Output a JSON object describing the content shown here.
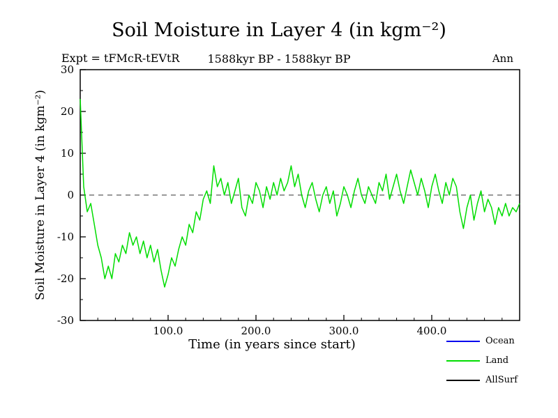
{
  "header": {
    "expt_label": "Expt = tFMcR-tEVtR",
    "period_label": "1588kyr BP - 1588kyr BP",
    "season_label": "Ann"
  },
  "chart_data": {
    "type": "line",
    "title": "Soil Moisture in Layer 4 (in kgm⁻²)",
    "xlabel": "Time (in years since start)",
    "ylabel": "Soil Moisture in Layer 4 (in kgm⁻²)",
    "xlim": [
      0,
      500
    ],
    "ylim": [
      -30,
      30
    ],
    "grid": false,
    "axis_color": "#000000",
    "x_minor_step": 20,
    "y_minor_step": 5,
    "xticks": [
      {
        "v": 100,
        "label": "100.0"
      },
      {
        "v": 200,
        "label": "200.0"
      },
      {
        "v": 300,
        "label": "300.0"
      },
      {
        "v": 400,
        "label": "400.0"
      }
    ],
    "yticks": [
      {
        "v": -30,
        "label": "-30"
      },
      {
        "v": -20,
        "label": "-20"
      },
      {
        "v": -10,
        "label": "-10"
      },
      {
        "v": 0,
        "label": "0"
      },
      {
        "v": 10,
        "label": "10"
      },
      {
        "v": 20,
        "label": "20"
      },
      {
        "v": 30,
        "label": "30"
      }
    ],
    "zero_line": {
      "y": 0,
      "style": "dashed",
      "color": "#333333"
    },
    "legend": {
      "position": "bottom-right",
      "entries": [
        {
          "name": "Ocean",
          "color": "#0000ee"
        },
        {
          "name": "Land",
          "color": "#00dd00"
        },
        {
          "name": "AllSurf",
          "color": "#000000"
        }
      ]
    },
    "series": [
      {
        "name": "Land",
        "color": "#00dd00",
        "x": [
          0,
          4,
          8,
          12,
          16,
          20,
          24,
          28,
          32,
          36,
          40,
          44,
          48,
          52,
          56,
          60,
          64,
          68,
          72,
          76,
          80,
          84,
          88,
          92,
          96,
          100,
          104,
          108,
          112,
          116,
          120,
          124,
          128,
          132,
          136,
          140,
          144,
          148,
          152,
          156,
          160,
          164,
          168,
          172,
          176,
          180,
          184,
          188,
          192,
          196,
          200,
          204,
          208,
          212,
          216,
          220,
          224,
          228,
          232,
          236,
          240,
          244,
          248,
          252,
          256,
          260,
          264,
          268,
          272,
          276,
          280,
          284,
          288,
          292,
          296,
          300,
          304,
          308,
          312,
          316,
          320,
          324,
          328,
          332,
          336,
          340,
          344,
          348,
          352,
          356,
          360,
          364,
          368,
          372,
          376,
          380,
          384,
          388,
          392,
          396,
          400,
          404,
          408,
          412,
          416,
          420,
          424,
          428,
          432,
          436,
          440,
          444,
          448,
          452,
          456,
          460,
          464,
          468,
          472,
          476,
          480,
          484,
          488,
          492,
          496,
          500
        ],
        "y": [
          23,
          2,
          -4,
          -2,
          -7,
          -12,
          -15,
          -20,
          -17,
          -20,
          -14,
          -16,
          -12,
          -14,
          -9,
          -12,
          -10,
          -14,
          -11,
          -15,
          -12,
          -16,
          -13,
          -18,
          -22,
          -19,
          -15,
          -17,
          -13,
          -10,
          -12,
          -7,
          -9,
          -4,
          -6,
          -1,
          1,
          -2,
          7,
          2,
          4,
          0,
          3,
          -2,
          1,
          4,
          -3,
          -5,
          0,
          -2,
          3,
          1,
          -3,
          2,
          -1,
          3,
          0,
          4,
          1,
          3,
          7,
          2,
          5,
          0,
          -3,
          1,
          3,
          -1,
          -4,
          0,
          2,
          -2,
          1,
          -5,
          -2,
          2,
          0,
          -3,
          1,
          4,
          0,
          -2,
          2,
          0,
          -2,
          3,
          1,
          5,
          -1,
          2,
          5,
          1,
          -2,
          2,
          6,
          3,
          0,
          4,
          1,
          -3,
          2,
          5,
          1,
          -2,
          3,
          0,
          4,
          2,
          -4,
          -8,
          -3,
          0,
          -6,
          -2,
          1,
          -4,
          -1,
          -3,
          -7,
          -3,
          -5,
          -2,
          -5,
          -3,
          -4,
          -2
        ]
      }
    ]
  }
}
